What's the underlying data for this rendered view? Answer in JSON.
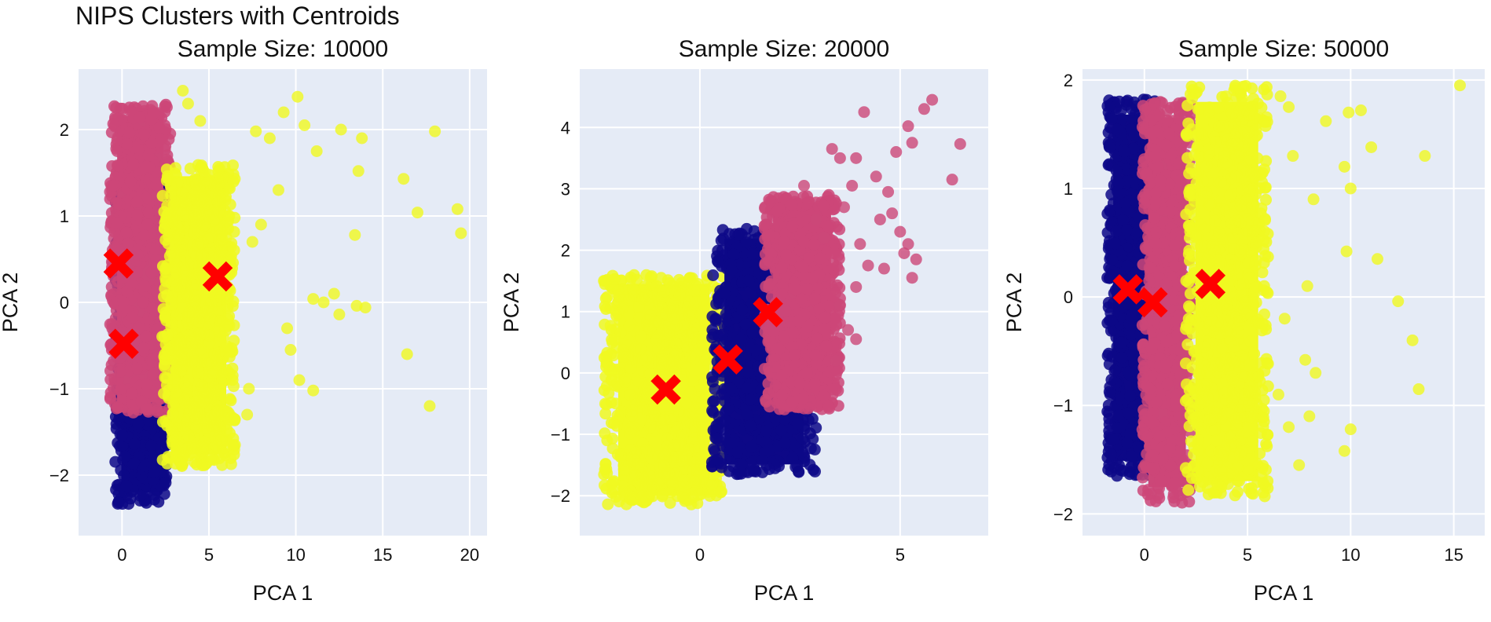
{
  "figure_title": "NIPS Clusters with Centroids",
  "colors": {
    "plot_bg": "#e5ebf6",
    "grid": "#ffffff",
    "cluster_navy": "#0d0887",
    "cluster_pink": "#cc4778",
    "cluster_yellow": "#f0f921",
    "centroid": "#ff0000"
  },
  "chart_data": [
    {
      "type": "scatter",
      "title": "Sample Size: 10000",
      "xlabel": "PCA 1",
      "ylabel": "PCA 2",
      "xlim": [
        -2.5,
        21
      ],
      "ylim": [
        -2.7,
        2.7
      ],
      "xticks": [
        0,
        5,
        10,
        15,
        20
      ],
      "yticks": [
        -2,
        -1,
        0,
        1,
        2
      ],
      "grid": true,
      "clusters": [
        {
          "color": "cluster_navy",
          "description": "dense band",
          "x_range": [
            -0.4,
            2.6
          ],
          "y_range": [
            -2.35,
            1.4
          ]
        },
        {
          "color": "cluster_pink",
          "description": "dense band",
          "x_range": [
            -0.7,
            2.8
          ],
          "y_range": [
            -1.3,
            2.3
          ]
        },
        {
          "color": "cluster_yellow",
          "description": "dense band",
          "x_range": [
            2.3,
            6.5
          ],
          "y_range": [
            -1.9,
            1.6
          ]
        }
      ],
      "outliers": {
        "color": "cluster_yellow",
        "points": [
          [
            3.5,
            2.45
          ],
          [
            3.8,
            2.3
          ],
          [
            4.5,
            2.1
          ],
          [
            7.7,
            1.98
          ],
          [
            9.3,
            2.2
          ],
          [
            10.1,
            2.38
          ],
          [
            10.5,
            2.05
          ],
          [
            12.6,
            2.0
          ],
          [
            13.8,
            1.9
          ],
          [
            18.0,
            1.98
          ],
          [
            8.5,
            1.9
          ],
          [
            11.2,
            1.75
          ],
          [
            13.6,
            1.52
          ],
          [
            16.2,
            1.43
          ],
          [
            17.0,
            1.04
          ],
          [
            19.3,
            1.08
          ],
          [
            19.5,
            0.8
          ],
          [
            13.4,
            0.78
          ],
          [
            7.5,
            0.7
          ],
          [
            11.0,
            0.04
          ],
          [
            11.6,
            0.0
          ],
          [
            12.2,
            0.1
          ],
          [
            12.5,
            -0.14
          ],
          [
            13.5,
            -0.04
          ],
          [
            14.0,
            -0.06
          ],
          [
            9.5,
            -0.3
          ],
          [
            9.7,
            -0.55
          ],
          [
            10.2,
            -0.9
          ],
          [
            11.0,
            -1.02
          ],
          [
            16.4,
            -0.6
          ],
          [
            17.7,
            -1.2
          ],
          [
            7.3,
            -1.0
          ],
          [
            7.2,
            -1.3
          ],
          [
            6.5,
            -1.65
          ],
          [
            8.0,
            0.9
          ],
          [
            9.0,
            1.3
          ]
        ]
      },
      "centroids": [
        [
          -0.2,
          0.45
        ],
        [
          0.1,
          -0.48
        ],
        [
          5.5,
          0.3
        ]
      ]
    },
    {
      "type": "scatter",
      "title": "Sample Size: 20000",
      "xlabel": "PCA 1",
      "ylabel": "PCA 2",
      "xlim": [
        -3.0,
        7.2
      ],
      "ylim": [
        -2.65,
        4.95
      ],
      "xticks": [
        0,
        5
      ],
      "yticks": [
        -2,
        -1,
        0,
        1,
        2,
        3,
        4
      ],
      "grid": true,
      "clusters": [
        {
          "color": "cluster_yellow",
          "description": "dense band",
          "x_range": [
            -2.4,
            0.6
          ],
          "y_range": [
            -2.15,
            1.6
          ]
        },
        {
          "color": "cluster_navy",
          "description": "dense band",
          "x_range": [
            0.3,
            2.9
          ],
          "y_range": [
            -1.65,
            2.35
          ]
        },
        {
          "color": "cluster_pink",
          "description": "dense band",
          "x_range": [
            1.6,
            3.5
          ],
          "y_range": [
            -0.6,
            2.9
          ]
        }
      ],
      "outliers": {
        "color": "cluster_pink",
        "points": [
          [
            5.8,
            4.45
          ],
          [
            5.6,
            4.3
          ],
          [
            4.1,
            4.25
          ],
          [
            5.2,
            4.02
          ],
          [
            5.3,
            3.75
          ],
          [
            6.5,
            3.73
          ],
          [
            6.3,
            3.15
          ],
          [
            4.9,
            3.6
          ],
          [
            3.3,
            3.65
          ],
          [
            3.5,
            3.5
          ],
          [
            3.9,
            3.5
          ],
          [
            4.4,
            3.2
          ],
          [
            2.6,
            3.05
          ],
          [
            3.8,
            3.05
          ],
          [
            4.5,
            2.5
          ],
          [
            4.8,
            2.6
          ],
          [
            5.0,
            2.3
          ],
          [
            5.2,
            2.1
          ],
          [
            5.1,
            1.95
          ],
          [
            5.4,
            1.85
          ],
          [
            5.3,
            1.55
          ],
          [
            4.6,
            1.7
          ],
          [
            3.9,
            1.4
          ],
          [
            3.5,
            1.1
          ],
          [
            3.7,
            0.7
          ],
          [
            3.9,
            0.55
          ],
          [
            3.4,
            0.2
          ],
          [
            4.2,
            1.75
          ],
          [
            4.0,
            2.1
          ],
          [
            3.1,
            2.2
          ],
          [
            2.9,
            2.5
          ],
          [
            4.7,
            2.95
          ],
          [
            3.6,
            2.7
          ]
        ]
      },
      "centroids": [
        [
          -0.85,
          -0.27
        ],
        [
          0.7,
          0.22
        ],
        [
          1.7,
          0.99
        ]
      ]
    },
    {
      "type": "scatter",
      "title": "Sample Size: 50000",
      "xlabel": "PCA 1",
      "ylabel": "PCA 2",
      "xlim": [
        -3.0,
        16.5
      ],
      "ylim": [
        -2.2,
        2.1
      ],
      "xticks": [
        0,
        5,
        10,
        15
      ],
      "yticks": [
        -2,
        -1,
        0,
        1,
        2
      ],
      "grid": true,
      "clusters": [
        {
          "color": "cluster_navy",
          "description": "dense band",
          "x_range": [
            -1.8,
            0.6
          ],
          "y_range": [
            -1.65,
            1.82
          ]
        },
        {
          "color": "cluster_pink",
          "description": "dense band",
          "x_range": [
            -0.1,
            2.3
          ],
          "y_range": [
            -1.9,
            1.8
          ]
        },
        {
          "color": "cluster_yellow",
          "description": "dense band",
          "x_range": [
            2.0,
            6.0
          ],
          "y_range": [
            -1.85,
            1.95
          ]
        }
      ],
      "outliers": {
        "color": "cluster_yellow",
        "points": [
          [
            15.3,
            1.95
          ],
          [
            13.6,
            1.3
          ],
          [
            10.5,
            1.72
          ],
          [
            9.9,
            1.7
          ],
          [
            8.8,
            1.62
          ],
          [
            11.0,
            1.38
          ],
          [
            9.7,
            1.2
          ],
          [
            10.0,
            1.0
          ],
          [
            11.3,
            0.35
          ],
          [
            9.8,
            0.42
          ],
          [
            12.3,
            -0.04
          ],
          [
            13.0,
            -0.4
          ],
          [
            13.3,
            -0.85
          ],
          [
            10.0,
            -1.22
          ],
          [
            9.7,
            -1.42
          ],
          [
            8.3,
            -0.7
          ],
          [
            7.8,
            -0.58
          ],
          [
            8.0,
            -1.1
          ],
          [
            7.5,
            -1.55
          ],
          [
            7.0,
            1.75
          ],
          [
            6.6,
            1.85
          ],
          [
            7.2,
            1.3
          ],
          [
            8.2,
            0.9
          ],
          [
            7.9,
            0.1
          ],
          [
            6.8,
            -0.2
          ],
          [
            7.0,
            -1.2
          ],
          [
            6.5,
            -0.9
          ]
        ]
      },
      "centroids": [
        [
          -0.8,
          0.07
        ],
        [
          0.4,
          -0.05
        ],
        [
          3.2,
          0.12
        ]
      ]
    }
  ]
}
